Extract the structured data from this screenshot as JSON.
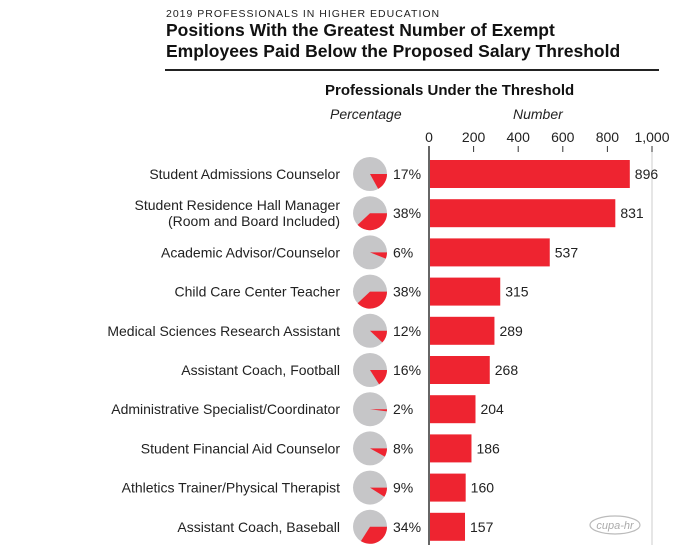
{
  "header": {
    "kicker": "2019 PROFESSIONALS IN HIGHER EDUCATION",
    "title_line1": "Positions With the Greatest Number of Exempt",
    "title_line2": "Employees Paid Below the Proposed Salary Threshold",
    "subtitle": "Professionals Under the Threshold",
    "pct_header": "Percentage",
    "num_header": "Number",
    "logo": "cupa-hr"
  },
  "colors": {
    "bar": "#ee2430",
    "pie_bg": "#c6c6c8",
    "axis": "#333333"
  },
  "chart_data": {
    "type": "bar",
    "orientation": "horizontal",
    "title": "Professionals Under the Threshold",
    "categories": [
      [
        "Student Admissions Counselor"
      ],
      [
        "Student Residence Hall Manager",
        "(Room and Board Included)"
      ],
      [
        "Academic Advisor/Counselor"
      ],
      [
        "Child Care Center Teacher"
      ],
      [
        "Medical Sciences Research Assistant"
      ],
      [
        "Assistant Coach, Football"
      ],
      [
        "Administrative Specialist/Coordinator"
      ],
      [
        "Student Financial Aid Counselor"
      ],
      [
        "Athletics Trainer/Physical Therapist"
      ],
      [
        "Assistant Coach, Baseball"
      ]
    ],
    "values": [
      896,
      831,
      537,
      315,
      289,
      268,
      204,
      186,
      160,
      157
    ],
    "percentages": [
      17,
      38,
      6,
      38,
      12,
      16,
      2,
      8,
      9,
      34
    ],
    "xlim": [
      0,
      1000
    ],
    "ticks": [
      0,
      200,
      400,
      600,
      800,
      1000
    ],
    "tick_labels": [
      "0",
      "200",
      "400",
      "600",
      "800",
      "1,000"
    ]
  }
}
